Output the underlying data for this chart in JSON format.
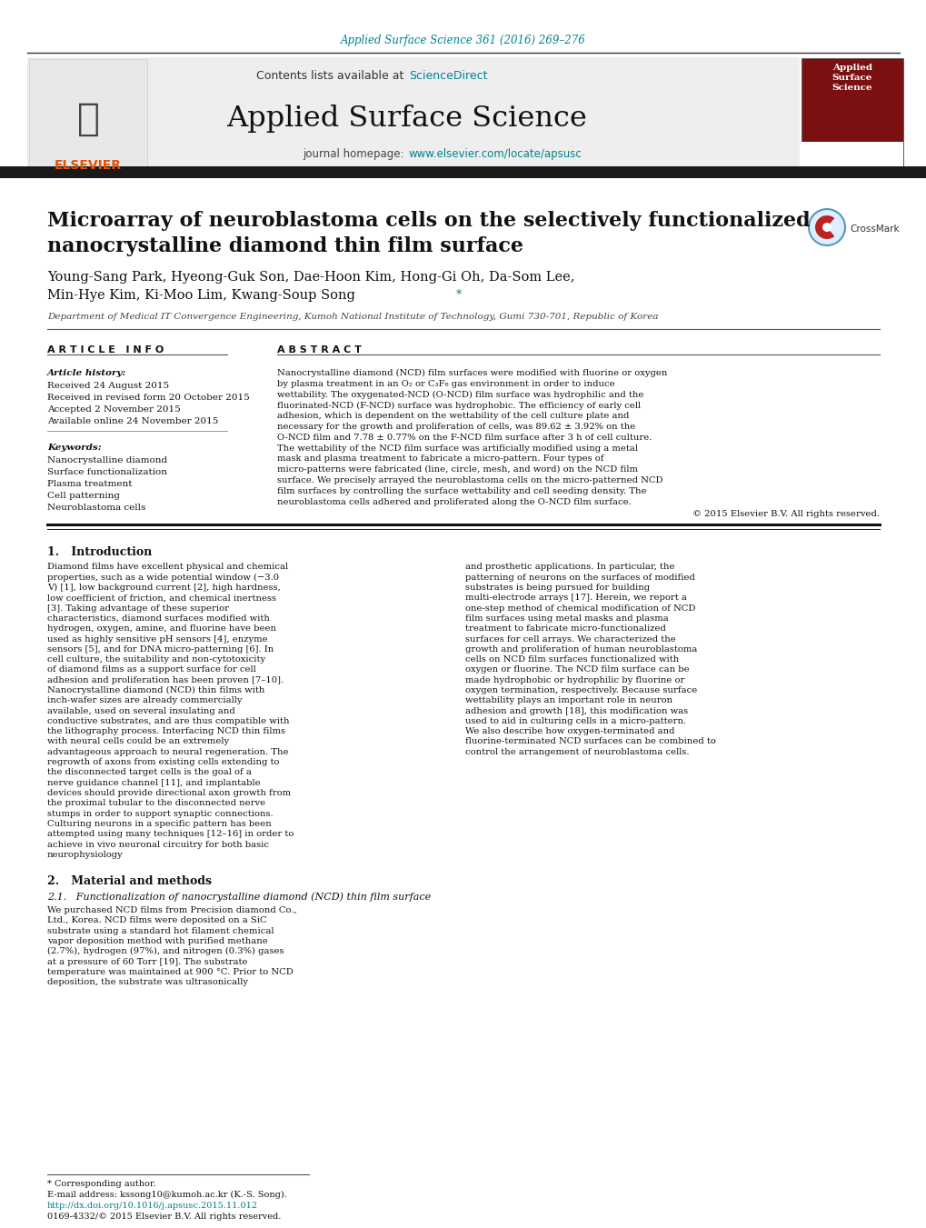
{
  "journal_ref": "Applied Surface Science 361 (2016) 269–276",
  "journal_name": "Applied Surface Science",
  "contents_text": "Contents lists available at ScienceDirect",
  "journal_homepage": "journal homepage: www.elsevier.com/locate/apsusc",
  "title_line1": "Microarray of neuroblastoma cells on the selectively functionalized",
  "title_line2": "nanocrystalline diamond thin film surface",
  "authors_line1": "Young-Sang Park, Hyeong-Guk Son, Dae-Hoon Kim, Hong-Gi Oh, Da-Som Lee,",
  "authors_line2": "Min-Hye Kim, Ki-Moo Lim, Kwang-Soup Song",
  "affiliation": "Department of Medical IT Convergence Engineering, Kumoh National Institute of Technology, Gumi 730-701, Republic of Korea",
  "article_info_header": "A R T I C L E   I N F O",
  "abstract_header": "A B S T R A C T",
  "article_history_label": "Article history:",
  "received": "Received 24 August 2015",
  "received_revised": "Received in revised form 20 October 2015",
  "accepted": "Accepted 2 November 2015",
  "available": "Available online 24 November 2015",
  "keywords_label": "Keywords:",
  "keyword1": "Nanocrystalline diamond",
  "keyword2": "Surface functionalization",
  "keyword3": "Plasma treatment",
  "keyword4": "Cell patterning",
  "keyword5": "Neuroblastoma cells",
  "abstract_text": "Nanocrystalline diamond (NCD) film surfaces were modified with fluorine or oxygen by plasma treatment in an O₂ or C₃F₈ gas environment in order to induce wettability. The oxygenated-NCD (O-NCD) film surface was hydrophilic and the fluorinated-NCD (F-NCD) surface was hydrophobic. The efficiency of early cell adhesion, which is dependent on the wettability of the cell culture plate and necessary for the growth and proliferation of cells, was 89.62 ± 3.92% on the O-NCD film and 7.78 ± 0.77% on the F-NCD film surface after 3 h of cell culture. The wettability of the NCD film surface was artificially modified using a metal mask and plasma treatment to fabricate a micro-pattern. Four types of micro-patterns were fabricated (line, circle, mesh, and word) on the NCD film surface. We precisely arrayed the neuroblastoma cells on the micro-patterned NCD film surfaces by controlling the surface wettability and cell seeding density. The neuroblastoma cells adhered and proliferated along the O-NCD film surface.",
  "copyright": "© 2015 Elsevier B.V. All rights reserved.",
  "intro_header": "1.   Introduction",
  "intro_col1": "Diamond films have excellent physical and chemical properties, such as a wide potential window (−3.0 V) [1], low background current [2], high hardness, low coefficient of friction, and chemical inertness [3]. Taking advantage of these superior characteristics, diamond surfaces modified with hydrogen, oxygen, amine, and fluorine have been used as highly sensitive pH sensors [4], enzyme sensors [5], and for DNA micro-patterning [6]. In cell culture, the suitability and non-cytotoxicity of diamond films as a support surface for cell adhesion and proliferation has been proven [7–10]. Nanocrystalline diamond (NCD) thin films with inch-wafer sizes are already commercially available, used on several insulating and conductive substrates, and are thus compatible with the lithography process. Interfacing NCD thin films with neural cells could be an extremely advantageous approach to neural regeneration. The regrowth of axons from existing cells extending to the disconnected target cells is the goal of a nerve guidance channel [11], and implantable devices should provide directional axon growth from the proximal tubular to the disconnected nerve stumps in order to support synaptic connections. Culturing neurons in a specific pattern has been attempted using many techniques [12–16] in order to achieve in vivo neuronal circuitry for both basic neurophysiology",
  "intro_col2": "and prosthetic applications. In particular, the patterning of neurons on the surfaces of modified substrates is being pursued for building multi-electrode arrays [17]. Herein, we report a one-step method of chemical modification of NCD film surfaces using metal masks and plasma treatment to fabricate micro-functionalized surfaces for cell arrays. We characterized the growth and proliferation of human neuroblastoma cells on NCD film surfaces functionalized with oxygen or fluorine. The NCD film surface can be made hydrophobic or hydrophilic by fluorine or oxygen termination, respectively. Because surface wettability plays an important role in neuron adhesion and growth [18], this modification was used to aid in culturing cells in a micro-pattern. We also describe how oxygen-terminated and fluorine-terminated NCD surfaces can be combined to control the arrangement of neuroblastoma cells.",
  "section2_header": "2.   Material and methods",
  "section21_header": "2.1.   Functionalization of nanocrystalline diamond (NCD) thin film surface",
  "section21_text": "We purchased NCD films from Precision diamond Co., Ltd., Korea. NCD films were deposited on a SiC substrate using a standard hot filament chemical vapor deposition method with purified methane (2.7%), hydrogen (97%), and nitrogen (0.3%) gases at a pressure of 60 Torr [19]. The substrate temperature was maintained at 900 °C. Prior to NCD deposition, the substrate was ultrasonically",
  "footnote_star": "* Corresponding author.",
  "footnote_email": "E-mail address: kssong10@kumoh.ac.kr (K.-S. Song).",
  "footnote_doi": "http://dx.doi.org/10.1016/j.apsusc.2015.11.012",
  "footnote_issn": "0169-4332/© 2015 Elsevier B.V. All rights reserved.",
  "bg_color": "#ffffff",
  "teal_color": "#00838F",
  "orange_color": "#E65100",
  "dark_color": "#111111",
  "gray_color": "#555555"
}
